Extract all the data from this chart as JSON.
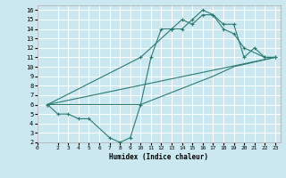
{
  "xlabel": "Humidex (Indice chaleur)",
  "bg_color": "#cbe8f0",
  "grid_color": "#ffffff",
  "line_color": "#2d7b6f",
  "xlim": [
    0,
    23.5
  ],
  "ylim": [
    2,
    16.5
  ],
  "xticks": [
    0,
    2,
    3,
    4,
    5,
    6,
    7,
    8,
    9,
    10,
    11,
    12,
    13,
    14,
    15,
    16,
    17,
    18,
    19,
    20,
    21,
    22,
    23
  ],
  "yticks": [
    2,
    3,
    4,
    5,
    6,
    7,
    8,
    9,
    10,
    11,
    12,
    13,
    14,
    15,
    16
  ],
  "series": [
    {
      "x": [
        1,
        2,
        3,
        4,
        5,
        7,
        8,
        9,
        10,
        11,
        12,
        13,
        14,
        15,
        16,
        17,
        18,
        19,
        20,
        21,
        22,
        23
      ],
      "y": [
        6,
        5,
        5,
        4.5,
        4.5,
        2.5,
        2,
        2.5,
        6,
        11,
        14,
        14,
        15,
        14.5,
        15.5,
        15.5,
        14.5,
        14.5,
        11,
        12,
        11,
        11
      ],
      "marker": true
    },
    {
      "x": [
        1,
        23
      ],
      "y": [
        6,
        11
      ],
      "marker": false
    },
    {
      "x": [
        1,
        10,
        13,
        14,
        15,
        16,
        17,
        18,
        19,
        20,
        22,
        23
      ],
      "y": [
        6,
        11,
        14,
        14,
        15,
        16,
        15.5,
        14,
        13.5,
        12,
        11,
        11
      ],
      "marker": true
    },
    {
      "x": [
        1,
        10,
        17,
        19,
        23
      ],
      "y": [
        6,
        6,
        9,
        10,
        11
      ],
      "marker": false
    }
  ]
}
